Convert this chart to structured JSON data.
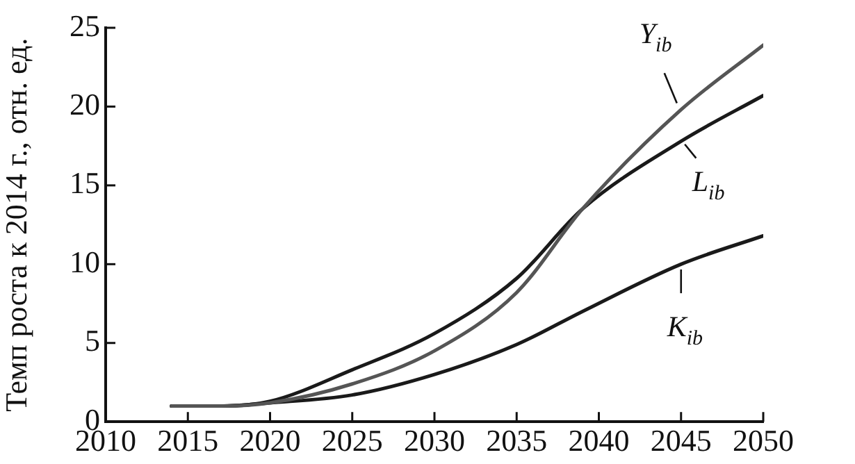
{
  "chart_data": {
    "type": "line",
    "ylabel": "Темп роста к 2014 г., отн. ед.",
    "x": [
      2014,
      2017,
      2020,
      2025,
      2030,
      2035,
      2039,
      2045,
      2050
    ],
    "series": [
      {
        "name": "Y$_{ib}$",
        "color": "#555555",
        "values": [
          1,
          1,
          1.2,
          2.4,
          4.5,
          8.2,
          13.5,
          19.8,
          23.9
        ]
      },
      {
        "name": "L$_{ib}$",
        "color": "#1a1a1a",
        "values": [
          1,
          1,
          1.3,
          3.3,
          5.6,
          9.1,
          13.5,
          17.8,
          20.7
        ]
      },
      {
        "name": "K$_{ib}$",
        "color": "#1a1a1a",
        "values": [
          1,
          1,
          1.2,
          1.7,
          3.0,
          4.9,
          7.0,
          10.0,
          11.8
        ]
      }
    ],
    "xlim": [
      2010,
      2050
    ],
    "xticks": [
      2010,
      2015,
      2020,
      2025,
      2030,
      2035,
      2040,
      2045,
      2050
    ],
    "ylim": [
      0,
      25
    ],
    "yticks": [
      0,
      5,
      10,
      15,
      20,
      25
    ],
    "grid": false,
    "legend": "right",
    "marker": "none",
    "line_style": "solid"
  }
}
